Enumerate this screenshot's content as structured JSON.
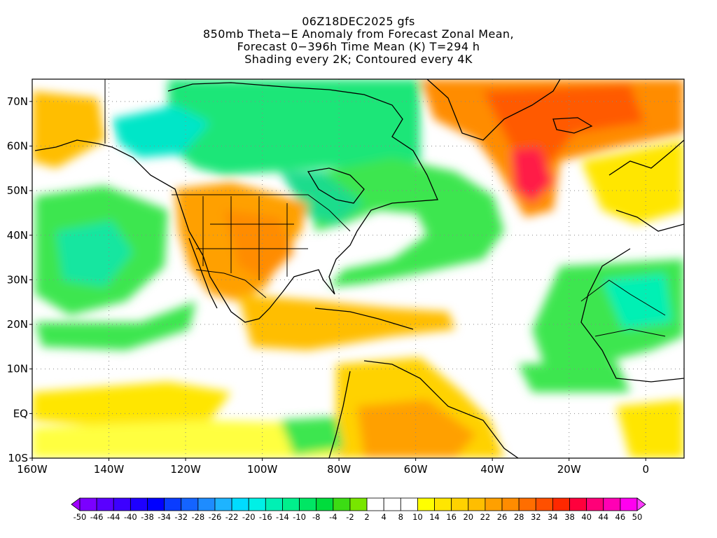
{
  "title": {
    "lines": [
      "06Z18DEC2025 gfs",
      "850mb Theta−E Anomaly from Forecast Zonal Mean,",
      "Forecast 0−396h Time Mean (K) T=294 h",
      "Shading every 2K; Contoured every 4K"
    ]
  },
  "map": {
    "lon_range": [
      -160,
      10
    ],
    "lat_range": [
      -10,
      75
    ],
    "lon_ticks": [
      {
        "value": -160,
        "label": "160W"
      },
      {
        "value": -140,
        "label": "140W"
      },
      {
        "value": -120,
        "label": "120W"
      },
      {
        "value": -100,
        "label": "100W"
      },
      {
        "value": -80,
        "label": "80W"
      },
      {
        "value": -60,
        "label": "60W"
      },
      {
        "value": -40,
        "label": "40W"
      },
      {
        "value": -20,
        "label": "20W"
      },
      {
        "value": 0,
        "label": "0"
      }
    ],
    "lat_ticks": [
      {
        "value": 70,
        "label": "70N"
      },
      {
        "value": 60,
        "label": "60N"
      },
      {
        "value": 50,
        "label": "50N"
      },
      {
        "value": 40,
        "label": "40N"
      },
      {
        "value": 30,
        "label": "30N"
      },
      {
        "value": 20,
        "label": "20N"
      },
      {
        "value": 10,
        "label": "10N"
      },
      {
        "value": 0,
        "label": "EQ"
      },
      {
        "value": -10,
        "label": "10S"
      }
    ],
    "grid": true
  },
  "colorbar": {
    "labels": [
      "-50",
      "-46",
      "-44",
      "-40",
      "-38",
      "-34",
      "-32",
      "-28",
      "-26",
      "-22",
      "-20",
      "-16",
      "-14",
      "-10",
      "-8",
      "-4",
      "-2",
      "2",
      "4",
      "8",
      "10",
      "14",
      "16",
      "20",
      "22",
      "26",
      "28",
      "32",
      "34",
      "38",
      "40",
      "44",
      "46",
      "50"
    ],
    "colors": [
      "#a000ff",
      "#7b00ff",
      "#5a00ff",
      "#3c00ff",
      "#1e00ff",
      "#0000ff",
      "#0a3cff",
      "#1464ff",
      "#1e8cff",
      "#1eb4ff",
      "#00dcff",
      "#00f0e6",
      "#00f0b4",
      "#00f08c",
      "#00e664",
      "#00dc3c",
      "#3cdc14",
      "#78e600",
      "#ffffff",
      "#ffffff",
      "#ffffff",
      "#ffff00",
      "#ffe600",
      "#ffd200",
      "#ffbe00",
      "#ffa000",
      "#ff8c00",
      "#ff6e00",
      "#ff5000",
      "#ff2800",
      "#ff003c",
      "#ff0078",
      "#ff00b4",
      "#ff00f0",
      "#ff3cff"
    ]
  }
}
